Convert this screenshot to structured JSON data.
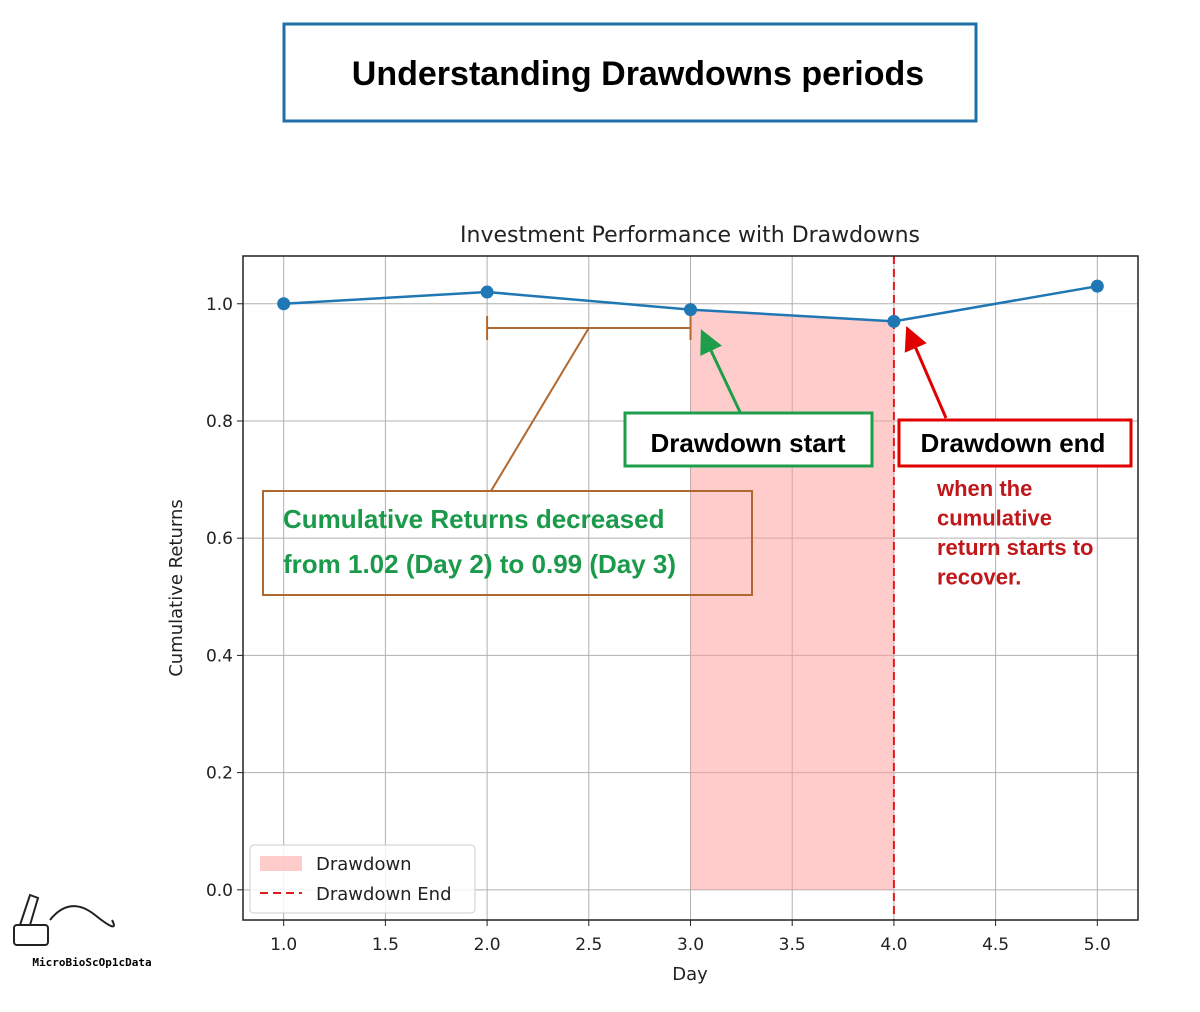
{
  "header": {
    "title": "Understanding Drawdowns periods"
  },
  "chart_data": {
    "type": "line",
    "title": "Investment Performance with Drawdowns",
    "xlabel": "Day",
    "ylabel": "Cumulative Returns",
    "x": [
      1,
      2,
      3,
      4,
      5
    ],
    "series": [
      {
        "color": "#1f77b4",
        "values": [
          1.0,
          1.02,
          0.99,
          0.97,
          1.03
        ]
      }
    ],
    "drawdown": {
      "name": "Drawdown",
      "x": [
        3,
        4
      ],
      "color": "#ff9999"
    },
    "drawdown_end": {
      "name": "Drawdown End",
      "x": 4,
      "color": "#e31a1c"
    },
    "xlim": [
      0.8,
      5.2
    ],
    "xticks": [
      {
        "value": 1,
        "label": "1.0"
      },
      1.5,
      {
        "value": 2,
        "label": "2.0"
      },
      2.5,
      {
        "value": 3,
        "label": "3.0"
      },
      3.5,
      {
        "value": 4,
        "label": "4.0"
      },
      4.5,
      {
        "value": 5,
        "label": "5.0"
      }
    ],
    "ylim": [
      -0.0515,
      1.0815
    ],
    "yticks": [
      {
        "value": 0,
        "label": "0.0"
      },
      0.2,
      0.4,
      0.6,
      0.8,
      {
        "value": 1,
        "label": "1.0"
      }
    ],
    "grid": true,
    "legend": "lower left",
    "annotations": {
      "start": "Drawdown start",
      "end": "Drawdown end",
      "end_note": [
        "when the",
        "cumulative",
        "return starts to",
        "recover."
      ],
      "decrease": [
        "Cumulative Returns decreased",
        "from 1.02 (Day 2) to 0.99 (Day 3)"
      ]
    }
  },
  "watermark": "MicroBioScOp1cData"
}
